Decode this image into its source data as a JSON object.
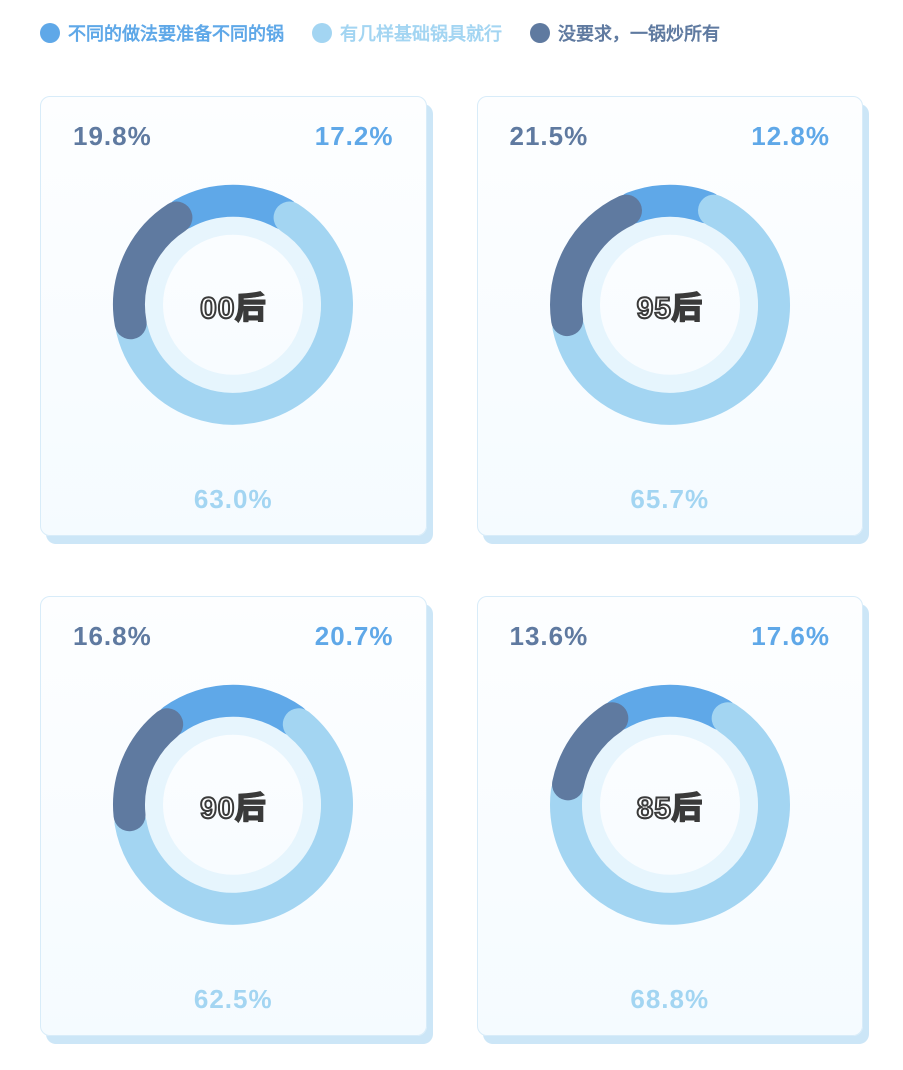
{
  "legend": [
    {
      "label": "不同的做法要准备不同的锅",
      "color": "#5fa8e8"
    },
    {
      "label": "有几样基础锅具就行",
      "color": "#a3d5f2"
    },
    {
      "label": "没要求，一锅炒所有",
      "color": "#5f7aa0"
    }
  ],
  "chart": {
    "type": "pie",
    "donut_thickness": 32,
    "gap_deg": 4,
    "inner_glow_color": "#d7eefb",
    "inner_glow_thickness": 18,
    "background_color": "#ffffff",
    "card_bg_top": "#fdfeff",
    "card_bg_bottom": "#f5fbff",
    "card_border": "#d8ecf9",
    "card_shadow": "#cce6f7",
    "center_label_fill": "#ffffff",
    "center_label_stroke": "#3a3a3a",
    "start_angle": -90
  },
  "panels": [
    {
      "title": "00后",
      "segments": [
        {
          "key": "different",
          "value": 17.2,
          "label": "17.2%",
          "color": "#5fa8e8",
          "label_color": "#5fa8e8",
          "label_pos": "topright"
        },
        {
          "key": "basic",
          "value": 63.0,
          "label": "63.0%",
          "color": "#a3d5f2",
          "label_color": "#a3d5f2",
          "label_pos": "bottom"
        },
        {
          "key": "none",
          "value": 19.8,
          "label": "19.8%",
          "color": "#5f7aa0",
          "label_color": "#5f7aa0",
          "label_pos": "topleft"
        }
      ]
    },
    {
      "title": "95后",
      "segments": [
        {
          "key": "different",
          "value": 12.8,
          "label": "12.8%",
          "color": "#5fa8e8",
          "label_color": "#5fa8e8",
          "label_pos": "topright"
        },
        {
          "key": "basic",
          "value": 65.7,
          "label": "65.7%",
          "color": "#a3d5f2",
          "label_color": "#a3d5f2",
          "label_pos": "bottom"
        },
        {
          "key": "none",
          "value": 21.5,
          "label": "21.5%",
          "color": "#5f7aa0",
          "label_color": "#5f7aa0",
          "label_pos": "topleft"
        }
      ]
    },
    {
      "title": "90后",
      "segments": [
        {
          "key": "different",
          "value": 20.7,
          "label": "20.7%",
          "color": "#5fa8e8",
          "label_color": "#5fa8e8",
          "label_pos": "topright"
        },
        {
          "key": "basic",
          "value": 62.5,
          "label": "62.5%",
          "color": "#a3d5f2",
          "label_color": "#a3d5f2",
          "label_pos": "bottom"
        },
        {
          "key": "none",
          "value": 16.8,
          "label": "16.8%",
          "color": "#5f7aa0",
          "label_color": "#5f7aa0",
          "label_pos": "topleft"
        }
      ]
    },
    {
      "title": "85后",
      "segments": [
        {
          "key": "different",
          "value": 17.6,
          "label": "17.6%",
          "color": "#5fa8e8",
          "label_color": "#5fa8e8",
          "label_pos": "topright"
        },
        {
          "key": "basic",
          "value": 68.8,
          "label": "68.8%",
          "color": "#a3d5f2",
          "label_color": "#a3d5f2",
          "label_pos": "bottom"
        },
        {
          "key": "none",
          "value": 13.6,
          "label": "13.6%",
          "color": "#5f7aa0",
          "label_color": "#5f7aa0",
          "label_pos": "topleft"
        }
      ]
    }
  ]
}
